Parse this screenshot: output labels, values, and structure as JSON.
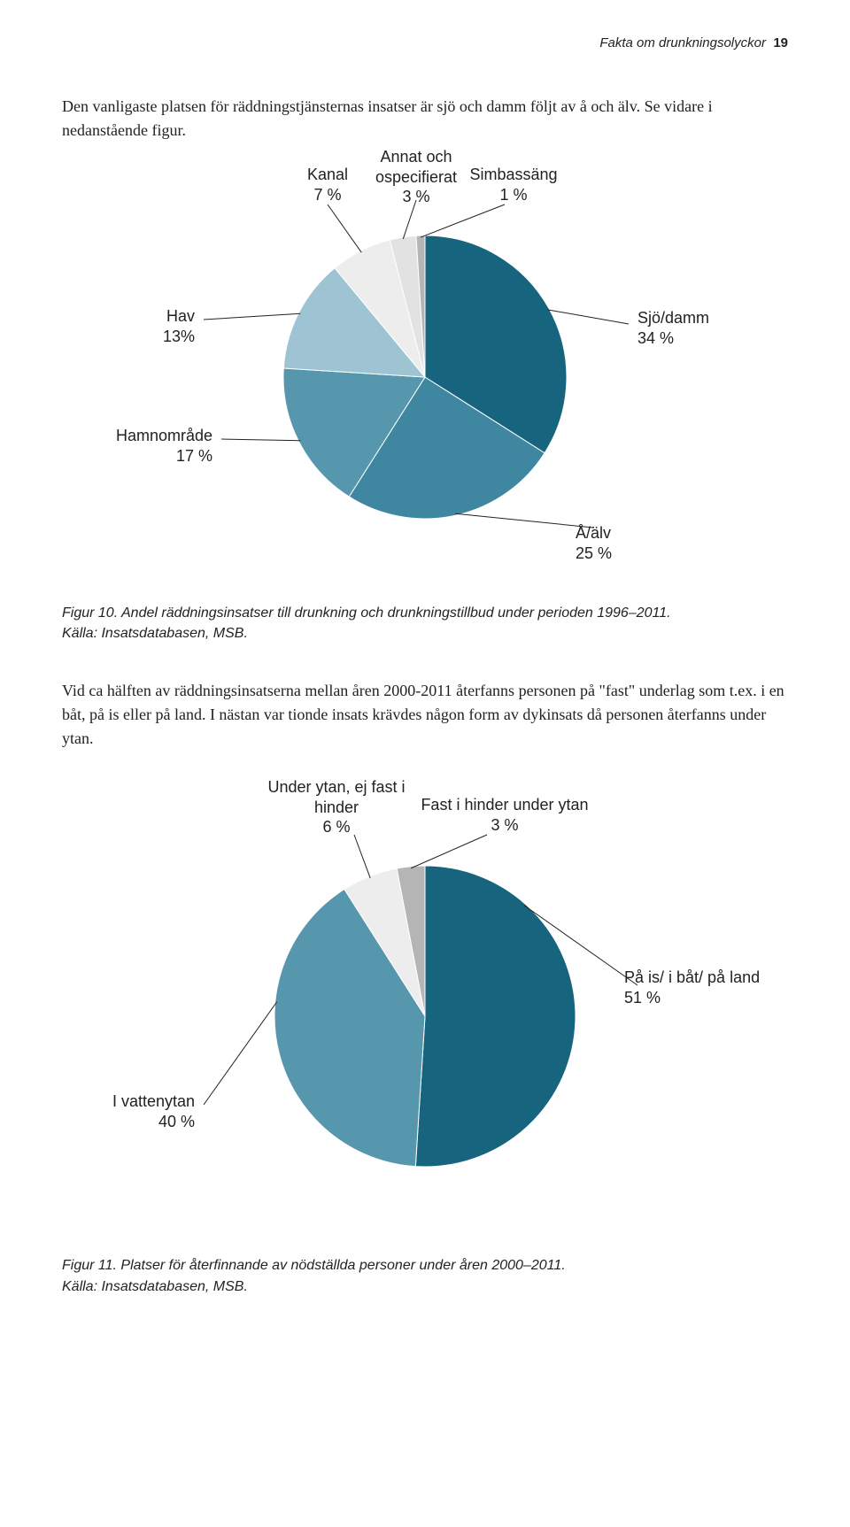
{
  "header": {
    "title": "Fakta om drunkningsolyckor",
    "page": "19"
  },
  "intro": "Den vanligaste platsen för räddningstjänsternas insatser är sjö och damm följt av å och älv. Se vidare i nedanstående figur.",
  "chart1": {
    "type": "pie",
    "radius": 160,
    "stroke": "#ffffff",
    "stroke_width": 1,
    "slices": [
      {
        "key": "sjodamm",
        "name": "Sjö/damm",
        "value_label": "34 %",
        "value": 34,
        "color": "#17647f"
      },
      {
        "key": "aalv",
        "name": "Å/älv",
        "value_label": "25 %",
        "value": 25,
        "color": "#3f87a0"
      },
      {
        "key": "hamn",
        "name": "Hamnområde",
        "value_label": "17 %",
        "value": 17,
        "color": "#5797ad"
      },
      {
        "key": "hav",
        "name": "Hav",
        "value_label": "13%",
        "value": 13,
        "color": "#9ec4d3"
      },
      {
        "key": "kanal",
        "name": "Kanal",
        "value_label": "7 %",
        "value": 7,
        "color": "#ededed"
      },
      {
        "key": "annat",
        "name": "Annat och ospecifierat",
        "value_label": "3 %",
        "value": 3,
        "color": "#e2e2e2"
      },
      {
        "key": "simbassang",
        "name": "Simbassäng",
        "value_label": "1 %",
        "value": 1,
        "color": "#b5b5b5"
      }
    ],
    "caption_title": "Figur 10. Andel räddningsinsatser till drunkning och drunkningstillbud under perioden 1996–2011.",
    "caption_source": "Källa: Insatsdatabasen, MSB."
  },
  "para2": "Vid ca hälften av räddningsinsatserna mellan åren 2000-2011 återfanns personen på \"fast\" underlag som t.ex. i en båt, på is eller på land. I nästan var tionde insats krävdes någon form av dykinsats då personen återfanns under ytan.",
  "chart2": {
    "type": "pie",
    "radius": 170,
    "stroke": "#ffffff",
    "stroke_width": 1,
    "slices": [
      {
        "key": "pais",
        "name": "På is/ i båt/ på land",
        "value_label": "51 %",
        "value": 51,
        "color": "#17647f"
      },
      {
        "key": "ivatten",
        "name": "I vattenytan",
        "value_label": "40 %",
        "value": 40,
        "color": "#5797ad"
      },
      {
        "key": "under",
        "name": "Under ytan, ej fast i hinder",
        "value_label": "6 %",
        "value": 6,
        "color": "#ededed"
      },
      {
        "key": "fasthind",
        "name": "Fast i hinder under ytan",
        "value_label": "3 %",
        "value": 3,
        "color": "#b5b5b5"
      }
    ],
    "caption_title": "Figur 11. Platser för återfinnande av nödställda personer under åren 2000–2011.",
    "caption_source": "Källa: Insatsdatabasen, MSB."
  }
}
